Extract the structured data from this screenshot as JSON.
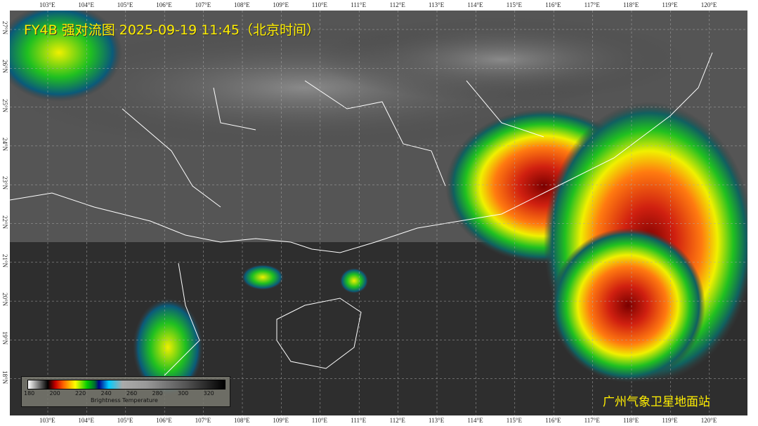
{
  "title": "FY4B 强对流图 2025-09-19 11:45（北京时间）",
  "station": "广州气象卫星地面站",
  "longitude_labels": [
    "103°E",
    "104°E",
    "105°E",
    "106°E",
    "107°E",
    "108°E",
    "109°E",
    "110°E",
    "111°E",
    "112°E",
    "113°E",
    "114°E",
    "115°E",
    "116°E",
    "117°E",
    "118°E",
    "119°E",
    "120°E"
  ],
  "latitude_labels": [
    "27°N",
    "26°N",
    "25°N",
    "24°N",
    "23°N",
    "22°N",
    "21°N",
    "20°N",
    "19°N",
    "18°N"
  ],
  "legend": {
    "title": "Brightness Temperature",
    "ticks": [
      "180",
      "200",
      "220",
      "240",
      "260",
      "280",
      "300",
      "320"
    ],
    "colors": [
      "#ffffff",
      "#000000",
      "#cc0000",
      "#ff6600",
      "#ffff00",
      "#00cc00",
      "#000088",
      "#00ccff",
      "#aaaaaa",
      "#000000"
    ]
  },
  "colors": {
    "title": "#ffee00",
    "borders": "#ffffff",
    "background": "#3c3c3c"
  }
}
